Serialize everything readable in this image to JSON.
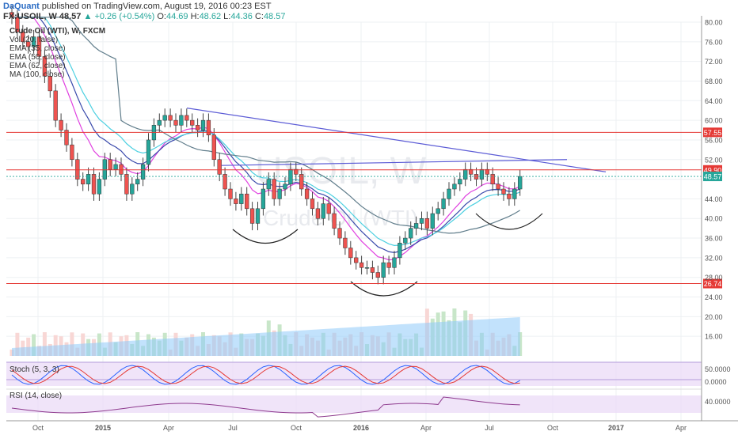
{
  "header": {
    "author": "DaQuant",
    "published": "published on TradingView.com, August 19, 2016 00:23 EST",
    "symbol": "FX:USOIL, W",
    "last": "48.57",
    "change": "+0.26 (+0.54%)",
    "open_label": "O:",
    "open": "44.69",
    "high_label": "H:",
    "high": "48.62",
    "low_label": "L:",
    "low": "44.36",
    "close_label": "C:",
    "close": "48.57"
  },
  "legend": [
    "Crude Oil (WTI), W, FXCM",
    "Vol (20, false)",
    "EMA (35, close)",
    "EMA (50, close)",
    "EMA (62, close)",
    "MA (100, close)"
  ],
  "watermark": {
    "symbol": "USOIL, W",
    "name": "Crude Oil (WTI)"
  },
  "colors": {
    "up": "#26a69a",
    "down": "#ef5350",
    "ema35": "#e040e0",
    "ema50": "#3949ab",
    "ema62": "#4dd0e1",
    "ma100": "#607d8b",
    "trend": "#5c5cd6",
    "level": "#e53935",
    "vol_area": "#90caf9",
    "stoch_k": "#2962ff",
    "stoch_d": "#e53935",
    "rsi": "#8e3a8e"
  },
  "chart_data": {
    "type": "candlestick",
    "timeframe": "weekly",
    "ylim": [
      12,
      80
    ],
    "yticks": [
      16,
      20,
      24,
      28,
      32,
      36,
      40,
      44,
      48,
      52,
      56,
      60,
      64,
      68,
      72,
      76,
      80
    ],
    "ytick_labels": [
      "16.00",
      "20.00",
      "24.00",
      "28.00",
      "32.00",
      "36.00",
      "40.00",
      "44.00",
      "48.00",
      "52.00",
      "56.00",
      "60.00",
      "64.00",
      "68.00",
      "72.00",
      "76.00",
      "80.00"
    ],
    "x_labels": [
      "Oct",
      "2015",
      "Apr",
      "Jul",
      "Oct",
      "2016",
      "Apr",
      "Jul",
      "Oct",
      "2017",
      "Apr"
    ],
    "closes": [
      81,
      78,
      76,
      75,
      77,
      73,
      69,
      66,
      60,
      58,
      55,
      52,
      48,
      47,
      49,
      45,
      48,
      52,
      50,
      51,
      49,
      45,
      47,
      48,
      51,
      56,
      59,
      60,
      61,
      60,
      59,
      61,
      60,
      59,
      58,
      60,
      57,
      52,
      49,
      46,
      44,
      43,
      45,
      42,
      39,
      42,
      46,
      48,
      44,
      46,
      47,
      50,
      49,
      46,
      44,
      42,
      40,
      43,
      41,
      38,
      36,
      34,
      32,
      31,
      30,
      30,
      29,
      28,
      31,
      30,
      32,
      35,
      36,
      38,
      39,
      40,
      38,
      41,
      42,
      44,
      46,
      47,
      48,
      50,
      49,
      48,
      50,
      49,
      47,
      46,
      45,
      44,
      46,
      48.57
    ],
    "last_price": "48.57",
    "horizontal_levels": [
      {
        "value": 57.55,
        "label": "57.55"
      },
      {
        "value": 49.9,
        "label": "49.90"
      },
      {
        "value": 26.74,
        "label": "26.74"
      }
    ],
    "stochastic": {
      "label": "Stoch (5, 3, 3)",
      "ticks": [
        "50.0000",
        "0.0000"
      ]
    },
    "rsi": {
      "label": "RSI (14, close)",
      "ticks": [
        "40.0000"
      ]
    }
  }
}
